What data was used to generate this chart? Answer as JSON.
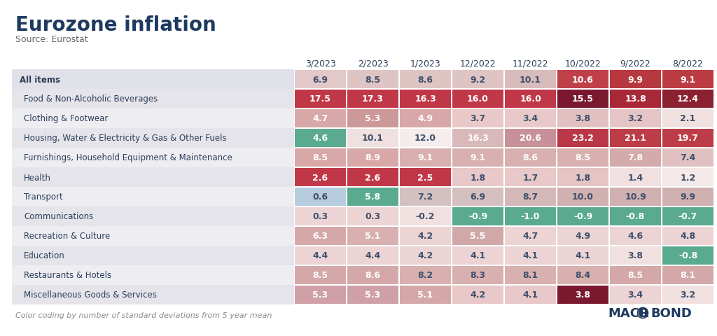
{
  "title": "Eurozone inflation",
  "source": "Source: Eurostat",
  "footnote": "Color coding by number of standard deviations from 5 year mean",
  "columns": [
    "3/2023",
    "2/2023",
    "1/2023",
    "12/2022",
    "11/2022",
    "10/2022",
    "9/2022",
    "8/2022"
  ],
  "rows": [
    {
      "label": "All items",
      "bold": true,
      "values": [
        6.9,
        8.5,
        8.6,
        9.2,
        10.1,
        10.6,
        9.9,
        9.1
      ]
    },
    {
      "label": "Food & Non-Alcoholic Beverages",
      "bold": false,
      "values": [
        17.5,
        17.3,
        16.3,
        16.0,
        16.0,
        15.5,
        13.8,
        12.4
      ]
    },
    {
      "label": "Clothing & Footwear",
      "bold": false,
      "values": [
        4.7,
        5.3,
        4.9,
        3.7,
        3.4,
        3.8,
        3.2,
        2.1
      ]
    },
    {
      "label": "Housing, Water & Electricity & Gas & Other Fuels",
      "bold": false,
      "values": [
        4.6,
        10.1,
        12.0,
        16.3,
        20.6,
        23.2,
        21.1,
        19.7
      ]
    },
    {
      "label": "Furnishings, Household Equipment & Maintenance",
      "bold": false,
      "values": [
        8.5,
        8.9,
        9.1,
        9.1,
        8.6,
        8.5,
        7.8,
        7.4
      ]
    },
    {
      "label": "Health",
      "bold": false,
      "values": [
        2.6,
        2.6,
        2.5,
        1.8,
        1.7,
        1.8,
        1.4,
        1.2
      ]
    },
    {
      "label": "Transport",
      "bold": false,
      "values": [
        0.6,
        5.8,
        7.2,
        6.9,
        8.7,
        10.0,
        10.9,
        9.9
      ]
    },
    {
      "label": "Communications",
      "bold": false,
      "values": [
        0.3,
        0.3,
        -0.2,
        -0.9,
        -1.0,
        -0.9,
        -0.8,
        -0.7
      ]
    },
    {
      "label": "Recreation & Culture",
      "bold": false,
      "values": [
        6.3,
        5.1,
        4.2,
        5.5,
        4.7,
        4.9,
        4.6,
        4.8
      ]
    },
    {
      "label": "Education",
      "bold": false,
      "values": [
        4.4,
        4.4,
        4.2,
        4.1,
        4.1,
        4.1,
        3.8,
        -0.8
      ]
    },
    {
      "label": "Restaurants & Hotels",
      "bold": false,
      "values": [
        8.5,
        8.6,
        8.2,
        8.3,
        8.1,
        8.4,
        8.5,
        8.1
      ]
    },
    {
      "label": "Miscellaneous Goods & Services",
      "bold": false,
      "values": [
        5.3,
        5.3,
        5.1,
        4.2,
        4.1,
        3.8,
        3.4,
        3.2
      ]
    }
  ],
  "cell_colors": [
    [
      "#e2c8c8",
      "#dfc4c4",
      "#dfc4c4",
      "#dfc4c4",
      "#d8bcbc",
      "#c0404a",
      "#b83840",
      "#bc3c44"
    ],
    [
      "#c03848",
      "#c03848",
      "#c03848",
      "#c03848",
      "#c03848",
      "#7a1830",
      "#a82838",
      "#8a2030"
    ],
    [
      "#d8a8a8",
      "#cc9898",
      "#d8a8a8",
      "#e8c8c8",
      "#e8c8c8",
      "#e0c0c0",
      "#e4c4c4",
      "#f0e0e0"
    ],
    [
      "#5aaa90",
      "#f0e0e0",
      "#f5ecec",
      "#d8b8b8",
      "#c89098",
      "#b83848",
      "#bc3c48",
      "#bc3c48"
    ],
    [
      "#d8a8a8",
      "#d8a8a8",
      "#d8b0b0",
      "#d8b0b0",
      "#d8b0b0",
      "#d8b0b0",
      "#d4aaaa",
      "#e0c0c0"
    ],
    [
      "#c03848",
      "#c03848",
      "#c03848",
      "#e8c8c8",
      "#e8c8c8",
      "#e4c4c4",
      "#f0e0e0",
      "#f4e8e8"
    ],
    [
      "#b8cce0",
      "#5aaa90",
      "#d4c0c0",
      "#d4c0c0",
      "#d4b8b8",
      "#d0b0b0",
      "#d0b0b0",
      "#d0b0b0"
    ],
    [
      "#ecd4d4",
      "#ecd4d4",
      "#f0e0e0",
      "#5aaa90",
      "#5aaa90",
      "#5aaa90",
      "#5aaa90",
      "#5aaa90"
    ],
    [
      "#d4a8a8",
      "#d8b0b0",
      "#ecd4d4",
      "#d0a8a8",
      "#ecd4d4",
      "#ecd4d4",
      "#ecd4d4",
      "#ecd4d4"
    ],
    [
      "#ecd4d4",
      "#ecd4d4",
      "#ecd4d4",
      "#ecd4d4",
      "#ecd4d4",
      "#ecd4d4",
      "#f0e0e0",
      "#5aaa90"
    ],
    [
      "#d4a8a8",
      "#d4a8a8",
      "#d8b0b0",
      "#d8b0b0",
      "#d8b0b0",
      "#d8b0b0",
      "#d4a8a8",
      "#d4a8a8"
    ],
    [
      "#d0a0a8",
      "#d0a0a8",
      "#d4a8a8",
      "#e8c8c8",
      "#e8c8c8",
      "#7a1830",
      "#ecd4d4",
      "#f0e0e0"
    ]
  ],
  "text_colors": [
    [
      "#3d4f6b",
      "#3d4f6b",
      "#3d4f6b",
      "#3d4f6b",
      "#3d4f6b",
      "#ffffff",
      "#ffffff",
      "#ffffff"
    ],
    [
      "#ffffff",
      "#ffffff",
      "#ffffff",
      "#ffffff",
      "#ffffff",
      "#ffffff",
      "#ffffff",
      "#ffffff"
    ],
    [
      "#ffffff",
      "#ffffff",
      "#ffffff",
      "#3d4f6b",
      "#3d4f6b",
      "#3d4f6b",
      "#3d4f6b",
      "#3d4f6b"
    ],
    [
      "#ffffff",
      "#3d4f6b",
      "#3d4f6b",
      "#ffffff",
      "#ffffff",
      "#ffffff",
      "#ffffff",
      "#ffffff"
    ],
    [
      "#ffffff",
      "#ffffff",
      "#ffffff",
      "#ffffff",
      "#ffffff",
      "#ffffff",
      "#ffffff",
      "#3d4f6b"
    ],
    [
      "#ffffff",
      "#ffffff",
      "#ffffff",
      "#3d4f6b",
      "#3d4f6b",
      "#3d4f6b",
      "#3d4f6b",
      "#3d4f6b"
    ],
    [
      "#3d4f6b",
      "#ffffff",
      "#3d4f6b",
      "#3d4f6b",
      "#3d4f6b",
      "#3d4f6b",
      "#3d4f6b",
      "#3d4f6b"
    ],
    [
      "#3d4f6b",
      "#3d4f6b",
      "#3d4f6b",
      "#ffffff",
      "#ffffff",
      "#ffffff",
      "#ffffff",
      "#ffffff"
    ],
    [
      "#ffffff",
      "#ffffff",
      "#3d4f6b",
      "#ffffff",
      "#3d4f6b",
      "#3d4f6b",
      "#3d4f6b",
      "#3d4f6b"
    ],
    [
      "#3d4f6b",
      "#3d4f6b",
      "#3d4f6b",
      "#3d4f6b",
      "#3d4f6b",
      "#3d4f6b",
      "#3d4f6b",
      "#ffffff"
    ],
    [
      "#ffffff",
      "#ffffff",
      "#3d4f6b",
      "#3d4f6b",
      "#3d4f6b",
      "#3d4f6b",
      "#ffffff",
      "#ffffff"
    ],
    [
      "#ffffff",
      "#ffffff",
      "#ffffff",
      "#3d4f6b",
      "#3d4f6b",
      "#ffffff",
      "#3d4f6b",
      "#3d4f6b"
    ]
  ],
  "bg_color": "#ffffff",
  "title_color": "#1e3a5f",
  "source_color": "#666666",
  "label_color": "#2c3e5a",
  "header_color": "#2c3e5a",
  "row_alt_colors": [
    "#ededf2",
    "#e4e4ea"
  ],
  "all_items_bg": "#e0e0e8"
}
